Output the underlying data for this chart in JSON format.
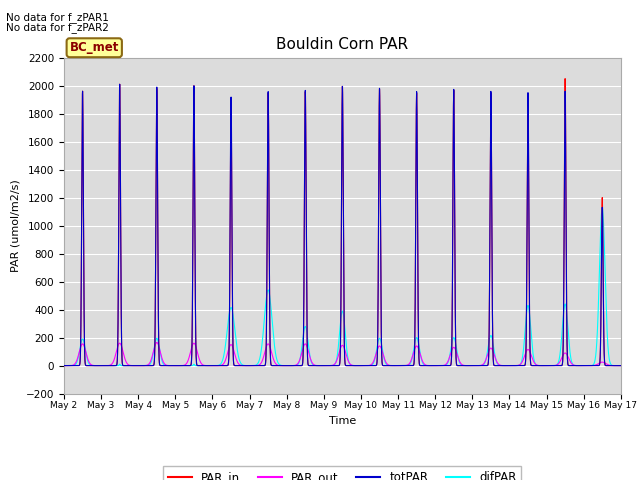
{
  "title": "Bouldin Corn PAR",
  "ylabel": "PAR (umol/m2/s)",
  "xlabel": "Time",
  "ylim": [
    -200,
    2200
  ],
  "yticks": [
    -200,
    0,
    200,
    400,
    600,
    800,
    1000,
    1200,
    1400,
    1600,
    1800,
    2000,
    2200
  ],
  "bg_color": "#dcdcdc",
  "annotation1": "No data for f_zPAR1",
  "annotation2": "No data for f_zPAR2",
  "bc_met_label": "BC_met",
  "legend_entries": [
    "PAR_in",
    "PAR_out",
    "totPAR",
    "difPAR"
  ],
  "legend_colors": [
    "#ff0000",
    "#ff00ff",
    "#0000cc",
    "#00ffff"
  ],
  "num_days": 15,
  "day_labels": [
    "May 2",
    "May 3",
    "May 4",
    "May 5",
    "May 6",
    "May 7",
    "May 8",
    "May 9",
    "May 10",
    "May 11",
    "May 12",
    "May 13",
    "May 14",
    "May 15",
    "May 16",
    "May 17"
  ],
  "par_in_peaks": [
    1960,
    2010,
    1980,
    2000,
    1800,
    1950,
    1960,
    2000,
    1980,
    1950,
    1970,
    1950,
    1790,
    2050,
    1200
  ],
  "tot_par_peaks": [
    1960,
    2010,
    1990,
    2000,
    1920,
    1960,
    1970,
    2000,
    1985,
    1960,
    1975,
    1960,
    1950,
    1960,
    1130
  ],
  "par_out_peaks": [
    155,
    160,
    165,
    160,
    150,
    155,
    155,
    145,
    140,
    140,
    130,
    125,
    115,
    90,
    25
  ],
  "dif_par_peaks": [
    190,
    10,
    195,
    10,
    415,
    540,
    280,
    390,
    195,
    200,
    200,
    215,
    430,
    440,
    1130
  ],
  "dif_par_narrow": [
    false,
    true,
    false,
    true,
    false,
    false,
    false,
    false,
    false,
    false,
    false,
    false,
    false,
    false,
    false
  ],
  "par_in_narrow": [
    false,
    false,
    false,
    false,
    false,
    false,
    false,
    false,
    false,
    false,
    false,
    false,
    false,
    false,
    false
  ]
}
